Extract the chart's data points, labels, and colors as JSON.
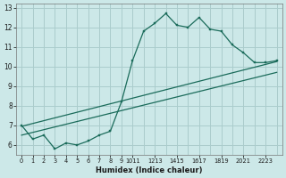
{
  "title": "",
  "xlabel": "Humidex (Indice chaleur)",
  "bg_color": "#cce8e8",
  "grid_color": "#aacccc",
  "line_color": "#1a6b5a",
  "xlim": [
    -0.5,
    23.5
  ],
  "ylim": [
    5.5,
    13.2
  ],
  "yticks": [
    6,
    7,
    8,
    9,
    10,
    11,
    12,
    13
  ],
  "main_x": [
    0,
    1,
    2,
    3,
    4,
    5,
    6,
    7,
    8,
    9,
    10,
    11,
    12,
    13,
    14,
    15,
    16,
    17,
    18,
    19,
    20,
    21,
    22,
    23
  ],
  "main_y": [
    7.0,
    6.3,
    6.5,
    5.8,
    6.1,
    6.0,
    6.2,
    6.5,
    6.7,
    8.2,
    10.3,
    11.8,
    12.2,
    12.7,
    12.1,
    12.0,
    12.5,
    11.9,
    11.8,
    11.1,
    10.7,
    10.2,
    10.2,
    10.3
  ],
  "line1_x": [
    0,
    23
  ],
  "line1_y": [
    6.95,
    10.25
  ],
  "line2_x": [
    0,
    23
  ],
  "line2_y": [
    6.5,
    9.7
  ]
}
